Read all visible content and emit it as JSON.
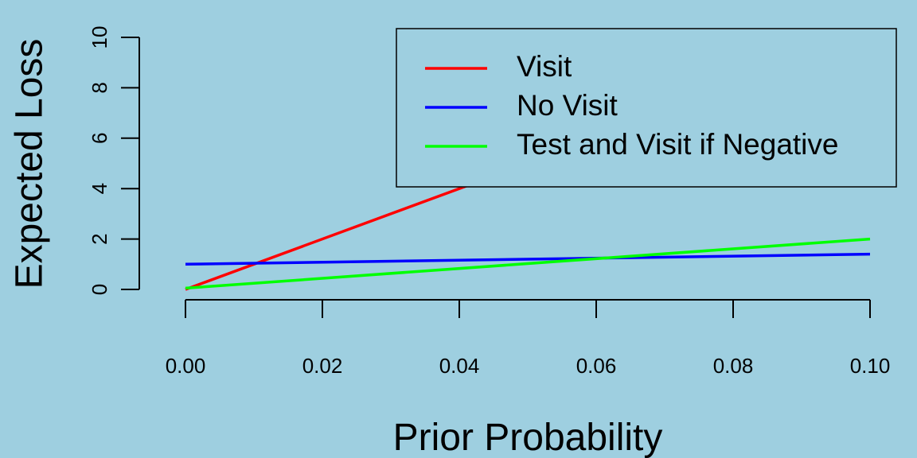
{
  "chart_data": {
    "type": "line",
    "xlabel": "Prior Probability",
    "ylabel": "Expected Loss",
    "xlim": [
      0,
      0.1
    ],
    "ylim": [
      0,
      10
    ],
    "xticks": [
      0,
      0.02,
      0.04,
      0.06,
      0.08,
      0.1
    ],
    "xtick_labels": [
      "0.00",
      "0.02",
      "0.04",
      "0.06",
      "0.08",
      "0.10"
    ],
    "yticks": [
      0,
      2,
      4,
      6,
      8,
      10
    ],
    "ytick_labels": [
      "0",
      "2",
      "4",
      "6",
      "8",
      "10"
    ],
    "grid": false,
    "legend_position": "top-right",
    "series": [
      {
        "name": "Visit",
        "color": "#ff0000",
        "x": [
          0,
          0.1
        ],
        "y": [
          0,
          10
        ]
      },
      {
        "name": "No Visit",
        "color": "#0000ff",
        "x": [
          0,
          0.1
        ],
        "y": [
          1,
          1.4
        ]
      },
      {
        "name": "Test and Visit if Negative",
        "color": "#00ff00",
        "x": [
          0,
          0.1
        ],
        "y": [
          0.05,
          2
        ]
      }
    ]
  }
}
